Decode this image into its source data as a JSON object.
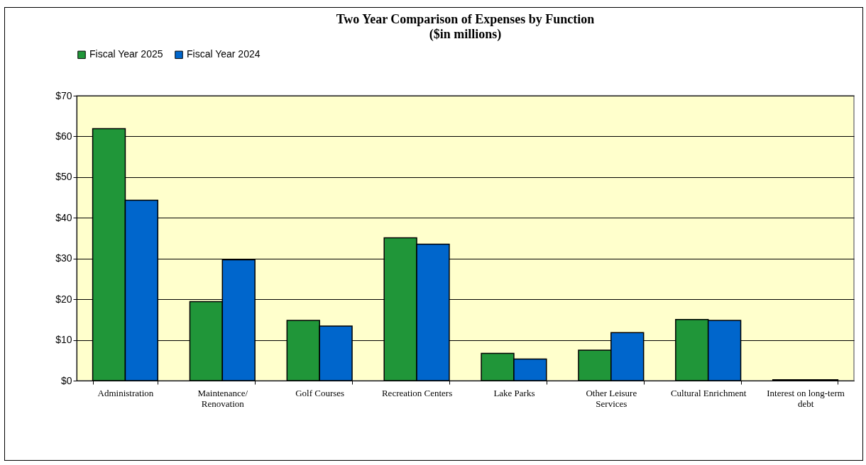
{
  "chart_data": {
    "type": "bar",
    "title": "Two Year Comparison of Expenses by Function\n($in millions)",
    "categories": [
      "Administration",
      "Maintenance/\nRenovation",
      "Golf Courses",
      "Recreation Centers",
      "Lake Parks",
      "Other Leisure\nServices",
      "Cultural Enrichment",
      "Interest on long-term\ndebt"
    ],
    "series": [
      {
        "name": "Fiscal Year 2025",
        "color": "#209639",
        "values": [
          61.9,
          19.4,
          14.8,
          35.1,
          6.7,
          7.5,
          15.0,
          0.2
        ]
      },
      {
        "name": "Fiscal Year 2024",
        "color": "#0066cc",
        "values": [
          44.3,
          29.7,
          13.4,
          33.5,
          5.3,
          11.8,
          14.8,
          0.2
        ]
      }
    ],
    "ylim": [
      0,
      70
    ],
    "yticks": [
      {
        "value": 0,
        "label": "$0"
      },
      {
        "value": 10,
        "label": "$10"
      },
      {
        "value": 20,
        "label": "$20"
      },
      {
        "value": 30,
        "label": "$30"
      },
      {
        "value": 40,
        "label": "$40"
      },
      {
        "value": 50,
        "label": "$50"
      },
      {
        "value": 60,
        "label": "$60"
      },
      {
        "value": 70,
        "label": "$70"
      }
    ],
    "grid": "y",
    "legend": "top"
  }
}
